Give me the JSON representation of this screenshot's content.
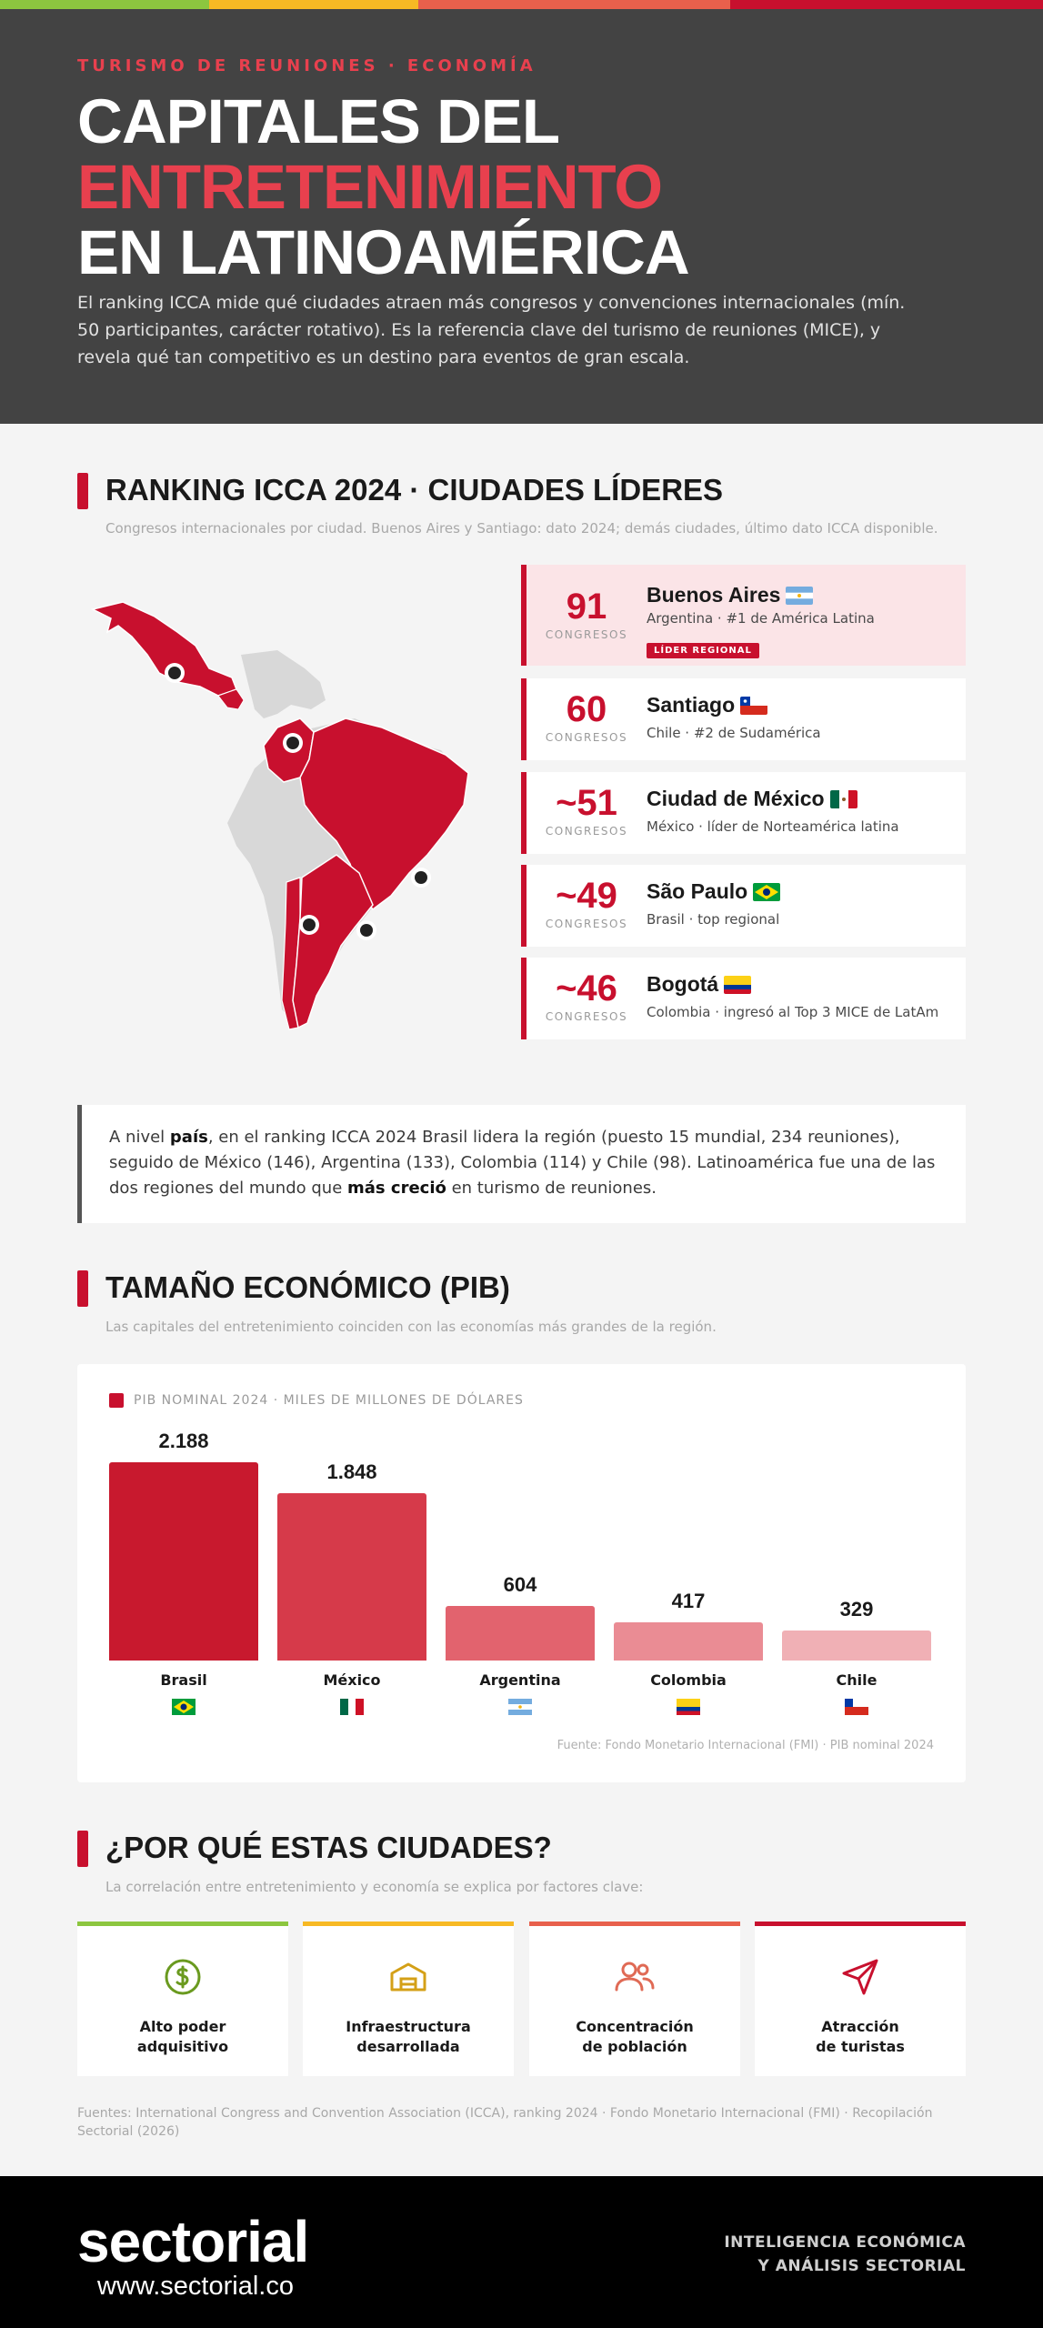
{
  "colors": {
    "stripe": [
      "#8cc63f",
      "#f7b924",
      "#e8604c",
      "#c8102e"
    ],
    "accent": "#c8102e",
    "header_bg": "#434343",
    "footer_bg": "#000000"
  },
  "header": {
    "kicker": "TURISMO DE REUNIONES · ECONOMÍA",
    "title_line1": "CAPITALES DEL",
    "title_line2": "ENTRETENIMIENTO",
    "title_line3": "EN LATINOAMÉRICA",
    "intro": "El ranking ICCA mide qué ciudades atraen más congresos y convenciones internacionales (mín. 50 participantes, carácter rotativo). Es la referencia clave del turismo de reuniones (MICE), y revela qué tan competitivo es un destino para eventos de gran escala."
  },
  "ranking": {
    "title": "RANKING ICCA 2024 · CIUDADES LÍDERES",
    "subtitle": "Congresos internacionales por ciudad. Buenos Aires y Santiago: dato 2024; demás ciudades, último dato ICCA disponible.",
    "unit_label": "CONGRESOS",
    "cities": [
      {
        "value": "91",
        "city": "Buenos Aires",
        "desc": "Argentina · #1 de América Latina",
        "badge": "LÍDER REGIONAL",
        "flag": "argentina-flag"
      },
      {
        "value": "60",
        "city": "Santiago",
        "desc": "Chile · #2 de Sudamérica",
        "flag": "chile-flag"
      },
      {
        "value": "~51",
        "city": "Ciudad de México",
        "desc": "México · líder de Norteamérica latina",
        "flag": "mexico-flag"
      },
      {
        "value": "~49",
        "city": "São Paulo",
        "desc": "Brasil · top regional",
        "flag": "brazil-flag"
      },
      {
        "value": "~46",
        "city": "Bogotá",
        "desc": "Colombia · ingresó al Top 3 MICE de LatAm",
        "flag": "colombia-flag"
      }
    ]
  },
  "callout": {
    "t1": "A nivel ",
    "b1": "país",
    "t2": ", en el ranking ICCA 2024 Brasil lidera la región (puesto 15 mundial, 234 reuniones), seguido de México (146), Argentina (133), Colombia (114) y Chile (98). Latinoamérica fue una de las dos regiones del mundo que ",
    "b2": "más creció",
    "t3": " en turismo de reuniones."
  },
  "pib": {
    "title": "TAMAÑO ECONÓMICO (PIB)",
    "subtitle": "Las capitales del entretenimiento coinciden con las economías más grandes de la región.",
    "source": "Fuente: Fondo Monetario Internacional (FMI) · PIB nominal 2024"
  },
  "chart_data": {
    "type": "bar",
    "legend": "PIB NOMINAL 2024 · MILES DE MILLONES DE DÓLARES",
    "categories": [
      "Brasil",
      "México",
      "Argentina",
      "Colombia",
      "Chile"
    ],
    "values": [
      2188,
      1848,
      604,
      417,
      329
    ],
    "value_labels": [
      "2.188",
      "1.848",
      "604",
      "417",
      "329"
    ],
    "bar_colors": [
      "#c8192e",
      "#d63a4a",
      "#e2636e",
      "#ea8c94",
      "#f0b0b5"
    ],
    "flags": [
      "brazil-flag",
      "mexico-flag",
      "argentina-flag",
      "colombia-flag",
      "chile-flag"
    ]
  },
  "factors": {
    "title": "¿POR QUÉ ESTAS CIUDADES?",
    "subtitle": "La correlación entre entretenimiento y economía se explica por factores clave:",
    "items": [
      {
        "line1": "Alto poder",
        "line2": "adquisitivo",
        "icon": "coin-icon",
        "color": "#8cc63f",
        "icon_color": "#6a9a1f"
      },
      {
        "line1": "Infraestructura",
        "line2": "desarrollada",
        "icon": "building-icon",
        "color": "#f7b924",
        "icon_color": "#d4a017"
      },
      {
        "line1": "Concentración",
        "line2": "de población",
        "icon": "people-icon",
        "color": "#e8604c",
        "icon_color": "#e06a55"
      },
      {
        "line1": "Atracción",
        "line2": "de turistas",
        "icon": "send-arrow-icon",
        "color": "#c8102e",
        "icon_color": "#c8102e"
      }
    ]
  },
  "fuentes": "Fuentes: International Congress and Convention Association (ICCA), ranking 2024 · Fondo Monetario Internacional (FMI) · Recopilación Sectorial (2026)",
  "footer": {
    "logo": "sectorial",
    "url": "www.sectorial.co",
    "tagline1": "INTELIGENCIA ECONÓMICA",
    "tagline2": "Y ANÁLISIS SECTORIAL"
  }
}
